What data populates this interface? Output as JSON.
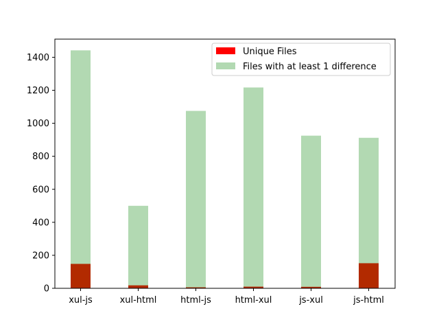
{
  "chart_data": {
    "type": "bar",
    "title": "",
    "xlabel": "",
    "ylabel": "",
    "categories": [
      "xul-js",
      "xul-html",
      "html-js",
      "html-xul",
      "js-xul",
      "js-html"
    ],
    "ylim": [
      0,
      1510
    ],
    "yticks": [
      0,
      200,
      400,
      600,
      800,
      1000,
      1200,
      1400
    ],
    "grid": false,
    "legend_position": "top-right",
    "stacking": "overlaid",
    "series": [
      {
        "name": "Files with at least 1 difference",
        "color": "#b2d9b2",
        "values": [
          1442,
          500,
          1075,
          1217,
          925,
          912
        ]
      },
      {
        "name": "Unique Files",
        "color": "#ff0000",
        "overlap_color": "#b22a00",
        "values": [
          148,
          18,
          6,
          10,
          9,
          152
        ]
      }
    ],
    "legend": [
      {
        "label": "Unique Files",
        "color": "#ff0000"
      },
      {
        "label": "Files with at least 1 difference",
        "color": "#b2d9b2"
      }
    ]
  }
}
